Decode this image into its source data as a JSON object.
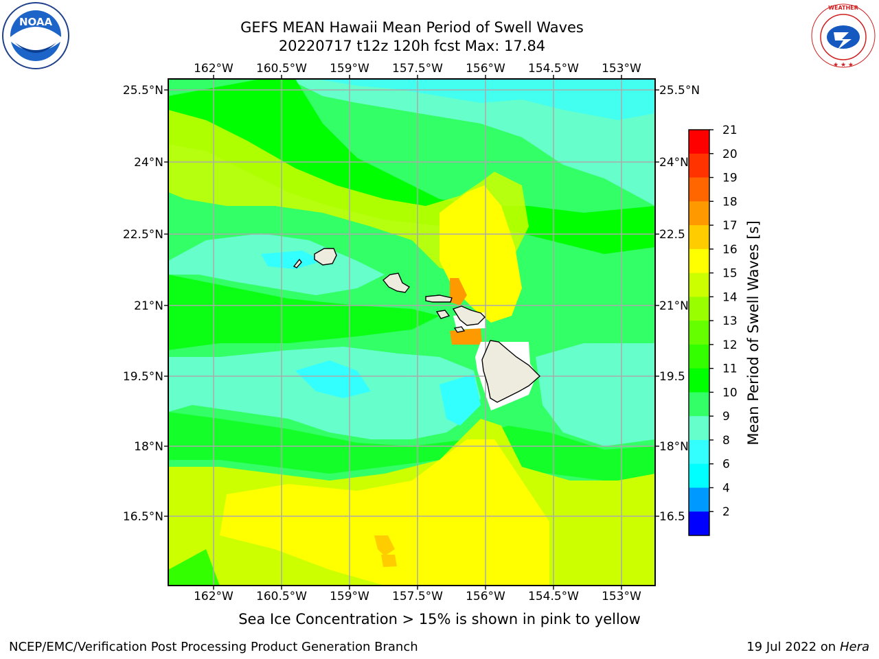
{
  "title": {
    "line1": "GEFS MEAN Hawaii Mean Period of Swell Waves",
    "line2": "20220717 t12z 120h fcst   Max: 17.84"
  },
  "map": {
    "lon_labels": [
      "162°W",
      "160.5°W",
      "159°W",
      "157.5°W",
      "156°W",
      "154.5°W",
      "153°W"
    ],
    "lat_labels": [
      "25.5°N",
      "24°N",
      "22.5°N",
      "21°N",
      "19.5°N",
      "18°N",
      "16.5°N"
    ],
    "right_lat_labels": [
      "25.5°N",
      "24°N",
      "22.5",
      "21°N",
      "19.5",
      "18°N",
      "16.5"
    ],
    "lon_range": [
      -163,
      -152.3
    ],
    "lat_range": [
      15.3,
      25.9
    ],
    "islands": [
      "Niihau",
      "Kauai",
      "Oahu",
      "Molokai",
      "Lanai",
      "Maui",
      "Kahoolawe",
      "Hawaii"
    ]
  },
  "colorbar": {
    "label": "Mean Period of Swell Waves [s]",
    "ticks": [
      "21",
      "20",
      "19",
      "18",
      "17",
      "16",
      "15",
      "14",
      "13",
      "12",
      "11",
      "10",
      "9",
      "8",
      "6",
      "4",
      "2"
    ],
    "colors": [
      "#ff0000",
      "#ff3300",
      "#ff6600",
      "#ff9900",
      "#ffcc00",
      "#ffff00",
      "#ccff00",
      "#99ff00",
      "#66ff00",
      "#33ff00",
      "#00ff00",
      "#33ff66",
      "#66ffcc",
      "#33ffff",
      "#00ffff",
      "#0099ff",
      "#0000ff"
    ]
  },
  "caption": "Sea Ice Concentration > 15% is shown in pink to yellow",
  "footer": {
    "left": "NCEP/EMC/Verification Post Processing Product Generation Branch",
    "right_date": "19 Jul 2022 on ",
    "right_host": "Hera"
  },
  "logos": {
    "left_text": "NOAA",
    "right_text": "NATIONAL WEATHER SERVICE"
  }
}
